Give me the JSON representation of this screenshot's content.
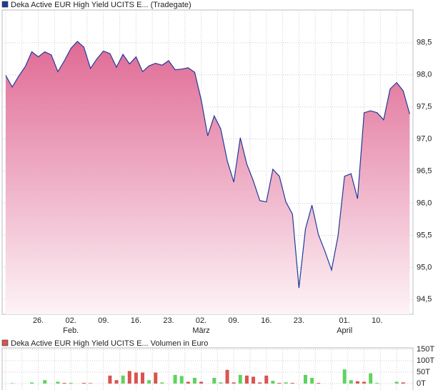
{
  "chart_data": [
    {
      "type": "area",
      "title": "Deka Active EUR High Yield UCITS E... (Tradegate)",
      "color": "#1f3a9a",
      "fill_top": "#e06a94",
      "categories": [
        null,
        null,
        null,
        null,
        null,
        "26.",
        null,
        null,
        null,
        null,
        "02.",
        null,
        null,
        null,
        null,
        "09.",
        null,
        null,
        null,
        null,
        "16.",
        null,
        null,
        null,
        null,
        "23.",
        null,
        null,
        null,
        null,
        "02.",
        null,
        null,
        null,
        null,
        "09.",
        null,
        null,
        null,
        null,
        "16.",
        null,
        null,
        null,
        null,
        "23.",
        null,
        null,
        null,
        null,
        null,
        null,
        "01.",
        null,
        null,
        null,
        null,
        "10.",
        null,
        null,
        null,
        null,
        null
      ],
      "months": [
        null,
        null,
        null,
        null,
        null,
        null,
        null,
        null,
        null,
        null,
        "Feb.",
        null,
        null,
        null,
        null,
        null,
        null,
        null,
        null,
        null,
        null,
        null,
        null,
        null,
        null,
        null,
        null,
        null,
        null,
        null,
        "März",
        null,
        null,
        null,
        null,
        null,
        null,
        null,
        null,
        null,
        null,
        null,
        null,
        null,
        null,
        null,
        null,
        null,
        null,
        null,
        null,
        null,
        "April",
        null,
        null,
        null,
        null,
        null,
        null,
        null,
        null,
        null,
        null
      ],
      "values": [
        97.99,
        97.81,
        97.98,
        98.13,
        98.36,
        98.28,
        98.36,
        98.31,
        98.05,
        98.22,
        98.41,
        98.52,
        98.43,
        98.1,
        98.25,
        98.37,
        98.33,
        98.12,
        98.32,
        98.17,
        98.28,
        98.05,
        98.14,
        98.18,
        98.15,
        98.22,
        98.08,
        98.09,
        98.11,
        98.04,
        97.61,
        97.05,
        97.36,
        97.16,
        96.66,
        96.33,
        97.02,
        96.61,
        96.35,
        96.04,
        96.02,
        96.53,
        96.42,
        96.02,
        95.83,
        94.68,
        95.6,
        95.97,
        95.51,
        95.25,
        94.96,
        95.49,
        96.42,
        96.46,
        96.07,
        97.41,
        97.44,
        97.41,
        97.3,
        97.78,
        97.88,
        97.75,
        97.39
      ],
      "ylim": [
        94.27,
        99.01
      ],
      "yticks": [
        {
          "value": 94.5,
          "label": "94,5"
        },
        {
          "value": 95,
          "label": "95,0"
        },
        {
          "value": 95.5,
          "label": "95,5"
        },
        {
          "value": 96,
          "label": "96,0"
        },
        {
          "value": 96.5,
          "label": "96,5"
        },
        {
          "value": 97,
          "label": "97,0"
        },
        {
          "value": 97.5,
          "label": "97,5"
        },
        {
          "value": 98,
          "label": "98,0"
        },
        {
          "value": 98.5,
          "label": "98,5"
        }
      ],
      "grid": true
    },
    {
      "type": "bar",
      "title": "Deka Active EUR High Yield UCITS E... Volumen in Euro",
      "color": "#d9534f",
      "values": [
        0,
        2,
        0,
        0,
        5,
        0,
        15,
        0,
        8,
        3,
        3,
        0,
        3,
        2,
        0,
        0,
        35,
        15,
        35,
        55,
        48,
        48,
        15,
        48,
        5,
        0,
        38,
        33,
        8,
        25,
        8,
        0,
        25,
        5,
        60,
        5,
        38,
        35,
        30,
        5,
        35,
        12,
        3,
        5,
        3,
        0,
        38,
        25,
        3,
        0,
        0,
        0,
        62,
        15,
        10,
        8,
        45,
        3,
        0,
        0,
        8,
        5,
        0
      ],
      "colors": [
        null,
        "#5fd35f",
        null,
        null,
        "#5fd35f",
        null,
        "#5fd35f",
        null,
        "#5fd35f",
        "#d9534f",
        "#5fd35f",
        null,
        "#d9534f",
        "#d9534f",
        null,
        null,
        "#d9534f",
        "#d9534f",
        "#5fd35f",
        "#d9534f",
        "#d9534f",
        "#d9534f",
        "#5fd35f",
        "#d9534f",
        "#5fd35f",
        null,
        "#5fd35f",
        "#5fd35f",
        "#d9534f",
        "#5fd35f",
        "#d9534f",
        null,
        "#5fd35f",
        "#5fd35f",
        "#d9534f",
        "#d9534f",
        "#5fd35f",
        "#d9534f",
        "#d9534f",
        "#d9534f",
        "#d9534f",
        "#5fd35f",
        "#d9534f",
        "#5fd35f",
        "#d9534f",
        null,
        "#5fd35f",
        "#5fd35f",
        "#d9534f",
        null,
        null,
        null,
        "#5fd35f",
        "#5fd35f",
        "#d9534f",
        "#d9534f",
        "#5fd35f",
        "#5fd35f",
        null,
        null,
        "#5fd35f",
        "#d9534f",
        null
      ],
      "ylim": [
        0,
        150
      ],
      "yticks": [
        {
          "value": 0,
          "label": "0T"
        },
        {
          "value": 50,
          "label": "50T"
        },
        {
          "value": 100,
          "label": "100T"
        },
        {
          "value": 150,
          "label": "150T"
        }
      ],
      "grid": true
    }
  ]
}
